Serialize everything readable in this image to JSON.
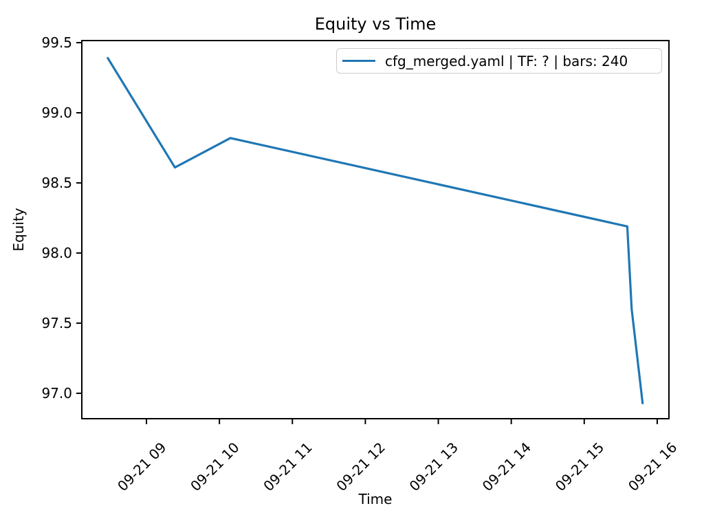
{
  "figure": {
    "background": "#ffffff"
  },
  "chart_data": {
    "type": "line",
    "title": "Equity vs Time",
    "xlabel": "Time",
    "ylabel": "Equity",
    "grid": false,
    "axis_color": "#000000",
    "text_color": "#000000",
    "legend": {
      "position": "upper right",
      "entries": [
        {
          "label": "cfg_merged.yaml | TF: ? | bars: 240",
          "color": "#1f77b4"
        }
      ]
    },
    "x_axis": {
      "unit": "time of day on 09-21, decimal hours (tick labels MM-DD HH)",
      "range": [
        8.114,
        16.161
      ],
      "tick_rotation_deg": 45,
      "ticks": [
        {
          "value": 9,
          "label": "09-21 09"
        },
        {
          "value": 10,
          "label": "09-21 10"
        },
        {
          "value": 11,
          "label": "09-21 11"
        },
        {
          "value": 12,
          "label": "09-21 12"
        },
        {
          "value": 13,
          "label": "09-21 13"
        },
        {
          "value": 14,
          "label": "09-21 14"
        },
        {
          "value": 15,
          "label": "09-21 15"
        },
        {
          "value": 16,
          "label": "09-21 16"
        }
      ]
    },
    "y_axis": {
      "unit": "equity",
      "range": [
        96.819,
        99.515
      ],
      "ticks": [
        {
          "value": 97.0,
          "label": "97.0"
        },
        {
          "value": 97.5,
          "label": "97.5"
        },
        {
          "value": 98.0,
          "label": "98.0"
        },
        {
          "value": 98.5,
          "label": "98.5"
        },
        {
          "value": 99.0,
          "label": "99.0"
        },
        {
          "value": 99.5,
          "label": "99.5"
        }
      ]
    },
    "series": [
      {
        "name": "cfg_merged.yaml | TF: ? | bars: 240",
        "color": "#1f77b4",
        "points": [
          {
            "t": 8.47,
            "equity": 99.39
          },
          {
            "t": 9.39,
            "equity": 98.61
          },
          {
            "t": 10.15,
            "equity": 98.82
          },
          {
            "t": 15.59,
            "equity": 98.19
          },
          {
            "t": 15.65,
            "equity": 97.6
          },
          {
            "t": 15.8,
            "equity": 96.93
          }
        ]
      }
    ]
  }
}
